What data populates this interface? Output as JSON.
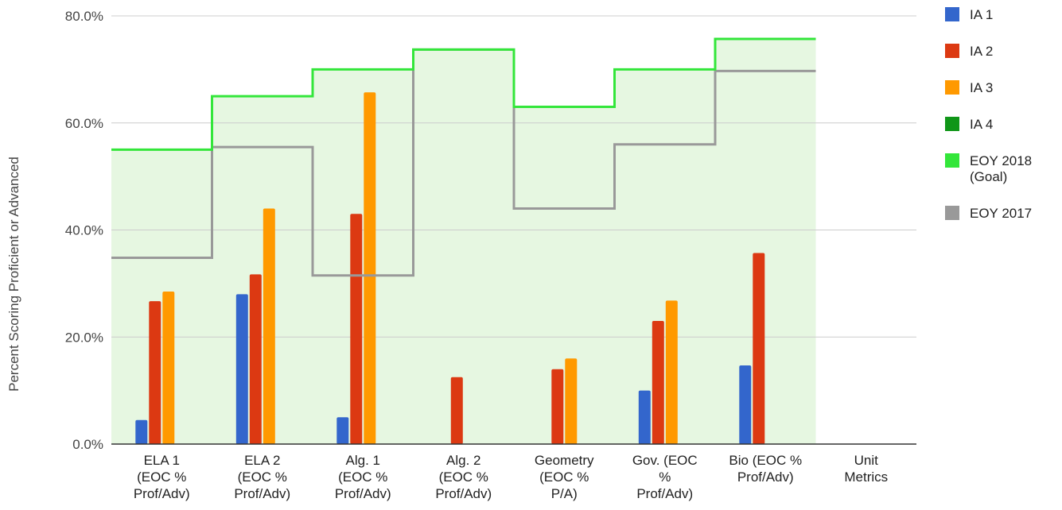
{
  "chart_data": {
    "type": "bar",
    "ylabel": "Percent Scoring Proficient or Advanced",
    "ylim": [
      0,
      80
    ],
    "yticks": [
      "0.0%",
      "20.0%",
      "40.0%",
      "60.0%",
      "80.0%"
    ],
    "yticks_values": [
      0,
      20,
      40,
      60,
      80
    ],
    "grid": true,
    "legend_position": "right",
    "categories": [
      [
        "ELA 1",
        "(EOC %",
        "Prof/Adv)"
      ],
      [
        "ELA 2",
        "(EOC %",
        "Prof/Adv)"
      ],
      [
        "Alg. 1",
        "(EOC %",
        "Prof/Adv)"
      ],
      [
        "Alg. 2",
        "(EOC %",
        "Prof/Adv)"
      ],
      [
        "Geometry",
        "(EOC %",
        "P/A)"
      ],
      [
        "Gov. (EOC",
        "%",
        "Prof/Adv)"
      ],
      [
        "Bio (EOC %",
        "Prof/Adv)"
      ],
      [
        "Unit",
        "Metrics"
      ]
    ],
    "bar_series": [
      {
        "name": "IA 1",
        "color": "#3366cc",
        "values": [
          4.5,
          28,
          5,
          null,
          null,
          10,
          14.7,
          null
        ]
      },
      {
        "name": "IA 2",
        "color": "#dc3912",
        "values": [
          26.7,
          31.7,
          43,
          12.5,
          14,
          23,
          35.7,
          null
        ]
      },
      {
        "name": "IA 3",
        "color": "#ff9900",
        "values": [
          28.5,
          44,
          65.7,
          null,
          16,
          26.8,
          null,
          null
        ]
      },
      {
        "name": "IA 4",
        "color": "#109618",
        "values": [
          null,
          null,
          null,
          null,
          null,
          null,
          null,
          null
        ]
      }
    ],
    "step_series": [
      {
        "name": "EOY 2018 (Goal)",
        "legend_lines": [
          "EOY 2018",
          "(Goal)"
        ],
        "color": "#33e63a",
        "fill": "#e6f7e1",
        "values": [
          55,
          65,
          70,
          73.7,
          63,
          70,
          75.7
        ]
      },
      {
        "name": "EOY 2017",
        "legend_lines": [
          "EOY 2017"
        ],
        "color": "#999999",
        "values": [
          34.8,
          55.5,
          31.5,
          73.7,
          44,
          56,
          69.7
        ]
      }
    ]
  }
}
